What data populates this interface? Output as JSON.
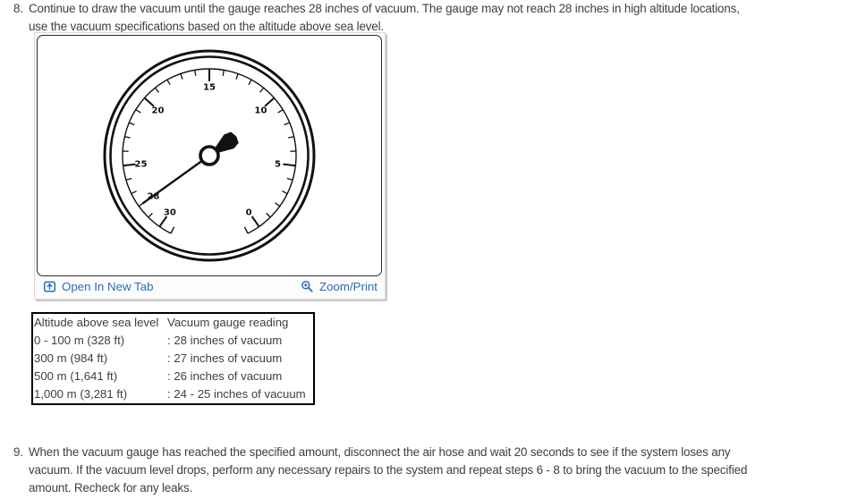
{
  "steps": [
    {
      "number": "8.",
      "text": "Continue to draw the vacuum until the gauge reaches 28 inches of vacuum. The gauge may not reach 28 inches in high altitude locations, use the vacuum specifications based on the altitude above sea level."
    },
    {
      "number": "9.",
      "text": "When the vacuum gauge has reached the specified amount, disconnect the air hose and wait 20 seconds to see if the system loses any vacuum. If the vacuum level drops, perform any necessary repairs to the system and repeat steps 6 - 8 to bring the vacuum to the specified amount. Recheck for any leaks."
    }
  ],
  "figure": {
    "open_link": "Open In New Tab",
    "zoom_link": "Zoom/Print",
    "gauge": {
      "min": 0,
      "max": 30,
      "tick_step": 1,
      "major_labels": [
        0,
        5,
        10,
        15,
        20,
        25,
        30
      ],
      "extra_labels": [
        28
      ],
      "needle_value": 28
    }
  },
  "table": {
    "headers": [
      "Altitude above sea level",
      "Vacuum gauge reading"
    ],
    "rows": [
      [
        "0 - 100 m (328 ft)",
        ": 28 inches of vacuum"
      ],
      [
        "300 m (984 ft)",
        ": 27 inches of vacuum"
      ],
      [
        "500 m (1,641 ft)",
        ": 26 inches of vacuum"
      ],
      [
        "1,000 m (3,281 ft)",
        ": 24 - 25 inches of vacuum"
      ]
    ]
  },
  "colors": {
    "link_blue": "#2b6cb8",
    "body_text": "#3c4043",
    "table_border": "#000000",
    "gauge_ink": "#111111"
  }
}
